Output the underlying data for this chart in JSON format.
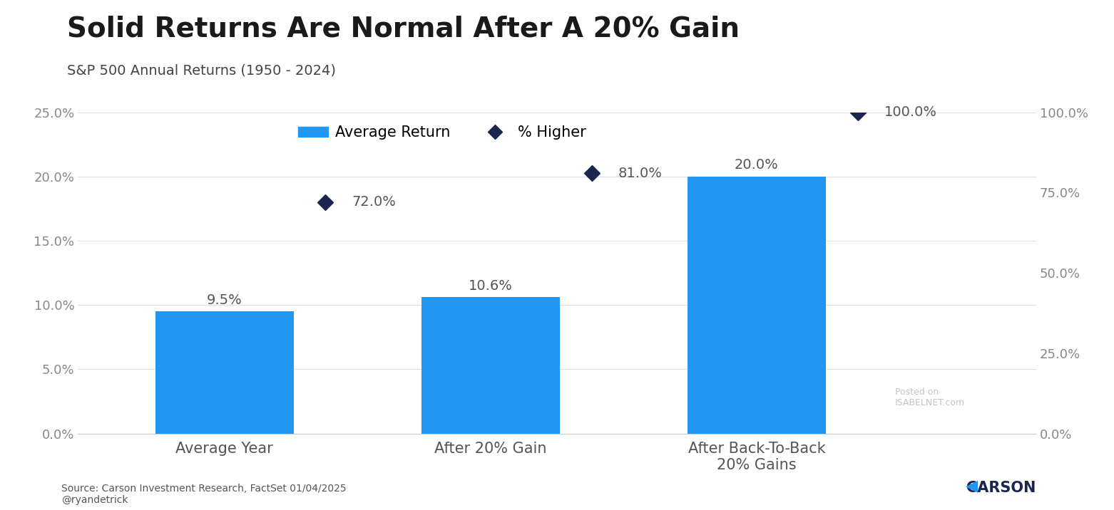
{
  "title": "Solid Returns Are Normal After A 20% Gain",
  "subtitle": "S&P 500 Annual Returns (1950 - 2024)",
  "categories": [
    "Average Year",
    "After 20% Gain",
    "After Back-To-Back\n20% Gains"
  ],
  "bar_values": [
    9.5,
    10.6,
    20.0
  ],
  "diamond_values": [
    72.0,
    81.0,
    100.0
  ],
  "bar_color": "#2196F3",
  "diamond_color": "#1a2550",
  "bar_label_fontsize": 14,
  "diamond_label_fontsize": 14,
  "title_fontsize": 28,
  "subtitle_fontsize": 14,
  "legend_fontsize": 15,
  "axis_tick_fontsize": 13,
  "left_ylim": [
    0,
    25
  ],
  "right_ylim": [
    0,
    100
  ],
  "left_yticks": [
    0.0,
    5.0,
    10.0,
    15.0,
    20.0,
    25.0
  ],
  "right_yticks": [
    0.0,
    25.0,
    50.0,
    75.0,
    100.0
  ],
  "source_text": "Source: Carson Investment Research, FactSet 01/04/2025\n@ryandetrick",
  "background_color": "#ffffff",
  "watermark_text": "Posted on\nISABELNET.com",
  "tick_color": "#888888",
  "label_color": "#555555",
  "bottom_line_color": "#cccccc"
}
